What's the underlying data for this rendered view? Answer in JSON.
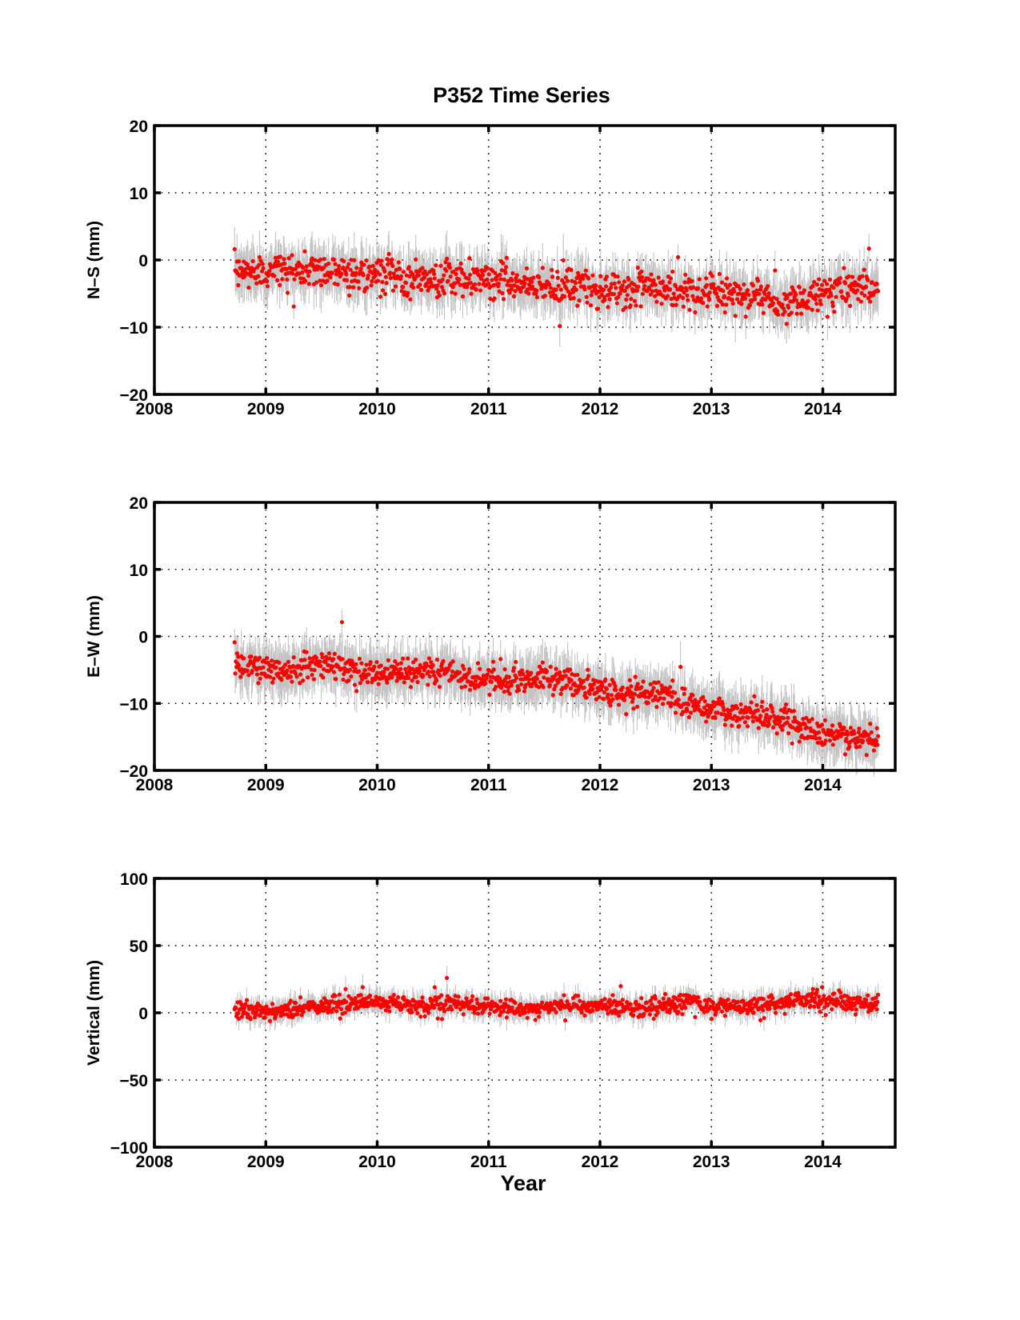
{
  "figure": {
    "title": "P352 Time Series",
    "x_axis_label": "Year"
  },
  "colors": {
    "points": "#ff0000",
    "error_bars": "#c4c4c4",
    "axes": "#000000"
  },
  "chart_data": [
    {
      "type": "scatter",
      "title": "P352 Time Series",
      "xlabel": "",
      "ylabel": "N–S (mm)",
      "xlim": [
        2008,
        2014.65
      ],
      "ylim": [
        -20,
        20
      ],
      "xticks": [
        2008,
        2009,
        2010,
        2011,
        2012,
        2013,
        2014
      ],
      "yticks": [
        -20,
        -10,
        0,
        10,
        20
      ],
      "ytick_labels": [
        "−20",
        "−10",
        "0",
        "10",
        "20"
      ],
      "grid": true,
      "series": [
        {
          "error_bar_halfwidth_mm": 3,
          "x": [
            2008.72,
            2008.9,
            2009.1,
            2009.3,
            2009.5,
            2009.7,
            2009.9,
            2010.1,
            2010.3,
            2010.5,
            2010.7,
            2010.9,
            2011.1,
            2011.3,
            2011.5,
            2011.7,
            2011.9,
            2012.1,
            2012.3,
            2012.5,
            2012.7,
            2012.9,
            2013.1,
            2013.3,
            2013.5,
            2013.65,
            2013.8,
            2014.0,
            2014.2,
            2014.4,
            2014.5
          ],
          "y": [
            -2,
            -1.6,
            -1.3,
            -1.8,
            -1.5,
            -2.0,
            -2.3,
            -2.2,
            -2.6,
            -2.8,
            -2.9,
            -3.1,
            -3.0,
            -3.5,
            -3.7,
            -4.0,
            -4.2,
            -4.4,
            -4.3,
            -4.5,
            -4.6,
            -4.8,
            -5.0,
            -5.0,
            -5.3,
            -6.8,
            -5.8,
            -5.0,
            -4.3,
            -4.0,
            -4.3
          ]
        }
      ]
    },
    {
      "type": "scatter",
      "xlabel": "",
      "ylabel": "E–W (mm)",
      "xlim": [
        2008,
        2014.65
      ],
      "ylim": [
        -20,
        20
      ],
      "xticks": [
        2008,
        2009,
        2010,
        2011,
        2012,
        2013,
        2014
      ],
      "yticks": [
        -20,
        -10,
        0,
        10,
        20
      ],
      "ytick_labels": [
        "−20",
        "−10",
        "0",
        "10",
        "20"
      ],
      "grid": true,
      "series": [
        {
          "error_bar_halfwidth_mm": 3,
          "x": [
            2008.72,
            2008.9,
            2009.1,
            2009.3,
            2009.5,
            2009.7,
            2009.9,
            2010.1,
            2010.3,
            2010.5,
            2010.7,
            2010.9,
            2011.1,
            2011.3,
            2011.5,
            2011.7,
            2011.9,
            2012.1,
            2012.3,
            2012.5,
            2012.7,
            2012.9,
            2013.1,
            2013.3,
            2013.5,
            2013.7,
            2013.9,
            2014.1,
            2014.3,
            2014.5
          ],
          "y": [
            -4.0,
            -4.8,
            -5.0,
            -4.6,
            -3.8,
            -4.6,
            -5.2,
            -5.5,
            -5.6,
            -5.0,
            -5.6,
            -6.5,
            -6.4,
            -6.8,
            -5.8,
            -6.6,
            -7.6,
            -8.6,
            -8.6,
            -8.4,
            -9.8,
            -10.6,
            -11.1,
            -11.6,
            -11.8,
            -12.6,
            -14.0,
            -14.6,
            -15.3,
            -15.5
          ]
        }
      ]
    },
    {
      "type": "scatter",
      "xlabel": "Year",
      "ylabel": "Vertical (mm)",
      "xlim": [
        2008,
        2014.65
      ],
      "ylim": [
        -100,
        100
      ],
      "xticks": [
        2008,
        2009,
        2010,
        2011,
        2012,
        2013,
        2014
      ],
      "yticks": [
        -100,
        -50,
        0,
        50,
        100
      ],
      "ytick_labels": [
        "−100",
        "−50",
        "0",
        "50",
        "100"
      ],
      "grid": true,
      "series": [
        {
          "error_bar_halfwidth_mm": 7,
          "x": [
            2008.72,
            2008.9,
            2009.1,
            2009.3,
            2009.5,
            2009.7,
            2009.9,
            2010.1,
            2010.3,
            2010.5,
            2010.7,
            2010.9,
            2011.1,
            2011.3,
            2011.5,
            2011.7,
            2011.9,
            2012.1,
            2012.3,
            2012.5,
            2012.7,
            2012.8,
            2012.9,
            2013.1,
            2013.3,
            2013.5,
            2013.7,
            2013.9,
            2014.1,
            2014.3,
            2014.5
          ],
          "y": [
            3,
            2,
            1,
            3,
            6,
            6,
            7,
            7,
            6,
            5,
            7,
            5,
            3,
            3,
            4,
            5,
            5,
            5,
            4,
            4,
            6,
            11,
            5,
            5,
            5,
            6,
            8,
            10,
            9,
            7,
            7
          ]
        }
      ]
    }
  ]
}
